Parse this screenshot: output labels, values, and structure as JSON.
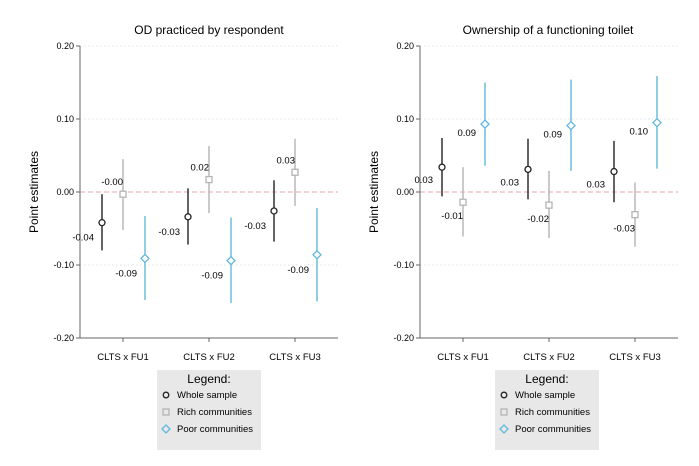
{
  "colors": {
    "whole": "#222222",
    "rich": "#b4b4b4",
    "poor": "#62b8dc",
    "zero_line": "#e8a3a8",
    "grid": "#dfe5ea",
    "axis": "#666666",
    "legend_bg": "#e8e8e8"
  },
  "legend": {
    "title": "Legend:",
    "items": [
      {
        "label": "Whole sample",
        "marker": "circle",
        "series": "whole"
      },
      {
        "label": "Rich communities",
        "marker": "square",
        "series": "rich"
      },
      {
        "label": "Poor communities",
        "marker": "diamond",
        "series": "poor"
      }
    ]
  },
  "chart_data": [
    {
      "type": "scatter",
      "subtype": "coefficient-plot",
      "title": "OD practiced by respondent",
      "ylabel": "Point estimates",
      "xlabel": "",
      "ylim": [
        -0.2,
        0.2
      ],
      "yticks": [
        -0.2,
        -0.1,
        0.0,
        0.1,
        0.2
      ],
      "ytick_labels": [
        "-0.20",
        "-0.10",
        "0.00",
        "0.10",
        "0.20"
      ],
      "categories": [
        "CLTS x FU1",
        "CLTS x FU2",
        "CLTS x FU3"
      ],
      "reference_line": 0,
      "series": [
        {
          "key": "whole",
          "name": "Whole sample",
          "marker": "circle",
          "values": [
            -0.042,
            -0.034,
            -0.026
          ],
          "ci_low": [
            -0.08,
            -0.072,
            -0.068
          ],
          "ci_high": [
            -0.003,
            0.005,
            0.016
          ],
          "labels": [
            "-0.04",
            "-0.03",
            "-0.03"
          ]
        },
        {
          "key": "rich",
          "name": "Rich communities",
          "marker": "square",
          "values": [
            -0.003,
            0.017,
            0.027
          ],
          "ci_low": [
            -0.052,
            -0.029,
            -0.019
          ],
          "ci_high": [
            0.045,
            0.063,
            0.073
          ],
          "labels": [
            "-0.00",
            "0.02",
            "0.03"
          ]
        },
        {
          "key": "poor",
          "name": "Poor communities",
          "marker": "diamond",
          "values": [
            -0.091,
            -0.094,
            -0.086
          ],
          "ci_low": [
            -0.148,
            -0.152,
            -0.15
          ],
          "ci_high": [
            -0.033,
            -0.035,
            -0.022
          ],
          "labels": [
            "-0.09",
            "-0.09",
            "-0.09"
          ]
        }
      ]
    },
    {
      "type": "scatter",
      "subtype": "coefficient-plot",
      "title": "Ownership of a functioning toilet",
      "ylabel": "Point estimates",
      "xlabel": "",
      "ylim": [
        -0.2,
        0.2
      ],
      "yticks": [
        -0.2,
        -0.1,
        0.0,
        0.1,
        0.2
      ],
      "ytick_labels": [
        "-0.20",
        "-0.10",
        "0.00",
        "0.10",
        "0.20"
      ],
      "categories": [
        "CLTS x FU1",
        "CLTS x FU2",
        "CLTS x FU3"
      ],
      "reference_line": 0,
      "series": [
        {
          "key": "whole",
          "name": "Whole sample",
          "marker": "circle",
          "values": [
            0.034,
            0.031,
            0.028
          ],
          "ci_low": [
            -0.006,
            -0.01,
            -0.014
          ],
          "ci_high": [
            0.074,
            0.073,
            0.07
          ],
          "labels": [
            "0.03",
            "0.03",
            "0.03"
          ]
        },
        {
          "key": "rich",
          "name": "Rich communities",
          "marker": "square",
          "values": [
            -0.014,
            -0.018,
            -0.031
          ],
          "ci_low": [
            -0.061,
            -0.063,
            -0.075
          ],
          "ci_high": [
            0.034,
            0.029,
            0.013
          ],
          "labels": [
            "-0.01",
            "-0.02",
            "-0.03"
          ]
        },
        {
          "key": "poor",
          "name": "Poor communities",
          "marker": "diamond",
          "values": [
            0.093,
            0.091,
            0.095
          ],
          "ci_low": [
            0.036,
            0.029,
            0.032
          ],
          "ci_high": [
            0.15,
            0.154,
            0.159
          ],
          "labels": [
            "0.09",
            "0.09",
            "0.10"
          ]
        }
      ]
    }
  ]
}
